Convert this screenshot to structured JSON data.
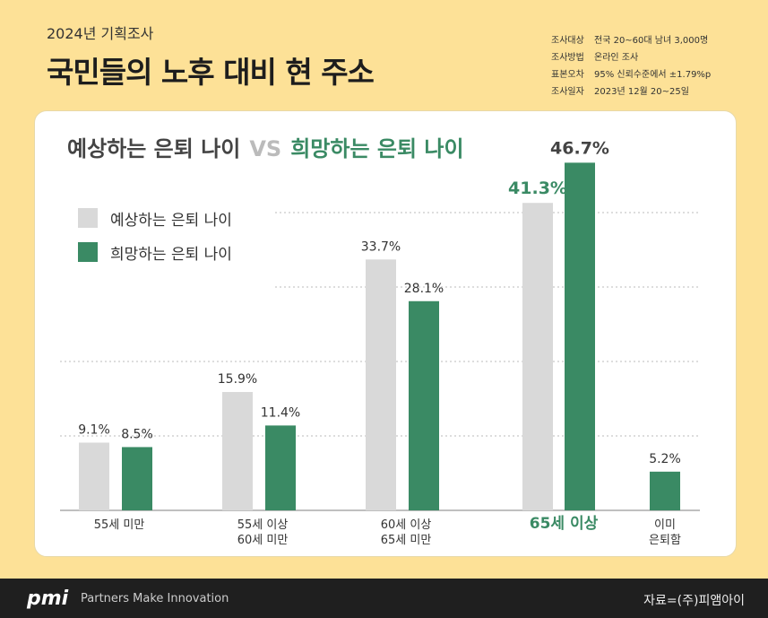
{
  "header": {
    "subtitle": "2024년 기획조사",
    "title": "국민들의 노후 대비 현 주소",
    "meta": [
      {
        "key": "조사대상",
        "value": "전국 20~60대 남녀 3,000명"
      },
      {
        "key": "조사방법",
        "value": "온라인 조사"
      },
      {
        "key": "표본오차",
        "value": "95% 신뢰수준에서 ±1.79%p"
      },
      {
        "key": "조사일자",
        "value": "2023년 12월 20~25일"
      }
    ]
  },
  "card": {
    "title_expected": "예상하는 은퇴 나이",
    "title_vs": "VS",
    "title_hoped": "희망하는 은퇴 나이"
  },
  "colors": {
    "background": "#fde197",
    "expected": "#d9d9d9",
    "hoped": "#3a8a64",
    "hoped_highlight_text": "#3a8a64"
  },
  "chart_data": {
    "type": "bar",
    "categories": [
      "55세 미만",
      "55세 이상\n60세 미만",
      "60세 이상\n65세 미만",
      "65세 이상",
      "이미\n은퇴함"
    ],
    "highlight_category": "65세 이상",
    "series": [
      {
        "name": "예상하는 은퇴 나이",
        "values": [
          9.1,
          15.9,
          33.7,
          41.3,
          null
        ],
        "labels": [
          "9.1%",
          "15.9%",
          "33.7%",
          "41.3%",
          null
        ]
      },
      {
        "name": "희망하는 은퇴 나이",
        "values": [
          8.5,
          11.4,
          28.1,
          46.7,
          5.2
        ],
        "labels": [
          "8.5%",
          "11.4%",
          "28.1%",
          "46.7%",
          "5.2%"
        ]
      }
    ],
    "legend_position": "top-left",
    "grid": true,
    "ylim": [
      0,
      50
    ]
  },
  "footer": {
    "logo": "pmi",
    "tagline": "Partners Make Innovation",
    "source": "자료=(주)피앰아이"
  }
}
